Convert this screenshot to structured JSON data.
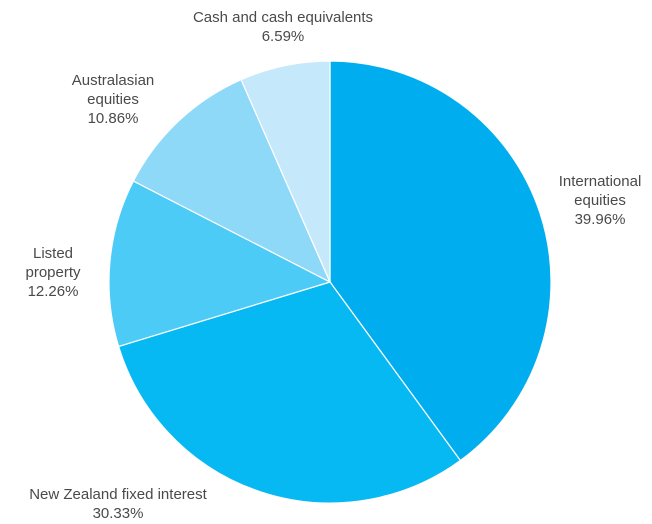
{
  "chart_data": {
    "type": "pie",
    "start_angle_deg": 0,
    "direction": "clockwise",
    "slices": [
      {
        "label": [
          "International",
          "equities"
        ],
        "value_text": "39.96%",
        "value": 39.96,
        "color": "#00aeef"
      },
      {
        "label": [
          "New Zealand fixed interest"
        ],
        "value_text": "30.33%",
        "value": 30.33,
        "color": "#06b9f2"
      },
      {
        "label": [
          "Listed",
          "property"
        ],
        "value_text": "12.26%",
        "value": 12.26,
        "color": "#4ccbf7"
      },
      {
        "label": [
          "Australasian",
          "equities"
        ],
        "value_text": "10.86%",
        "value": 10.86,
        "color": "#8ed8f8"
      },
      {
        "label": [
          "Cash and cash equivalents"
        ],
        "value_text": "6.59%",
        "value": 6.59,
        "color": "#c5e9fb"
      }
    ]
  }
}
